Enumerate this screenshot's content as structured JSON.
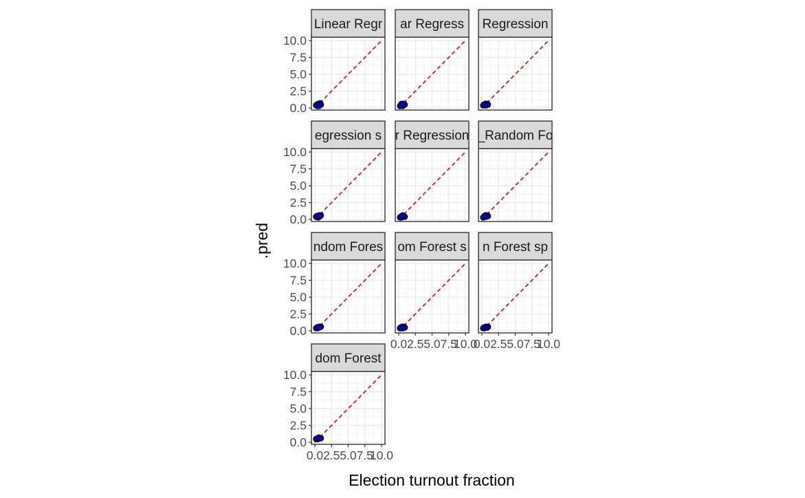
{
  "chart_data": {
    "type": "scatter",
    "xlabel": "Election turnout fraction",
    "ylabel": ".pred",
    "xlim": [
      0,
      10
    ],
    "ylim": [
      0,
      10
    ],
    "x_ticks": [
      "0.0",
      "2.5",
      "5.0",
      "7.5",
      "10.0"
    ],
    "y_ticks": [
      "0.0",
      "2.5",
      "5.0",
      "7.5",
      "10.0"
    ],
    "x_tick_values": [
      0,
      2.5,
      5,
      7.5,
      10
    ],
    "y_tick_values": [
      0,
      2.5,
      5,
      7.5,
      10
    ],
    "grid": true,
    "reference_line": {
      "type": "identity",
      "slope": 1,
      "intercept": 0,
      "color": "#e00000",
      "dash": "dashed"
    },
    "point_color": "#0000cc",
    "point_outline": "#000000",
    "panels": [
      {
        "strip": "Linear Regr",
        "points": [
          [
            0.3,
            0.5
          ],
          [
            0.5,
            0.4
          ],
          [
            0.7,
            0.6
          ],
          [
            0.4,
            0.3
          ],
          [
            0.6,
            0.5
          ],
          [
            0.8,
            0.7
          ],
          [
            0.5,
            0.6
          ],
          [
            0.9,
            0.5
          ],
          [
            0.2,
            0.4
          ],
          [
            0.6,
            0.3
          ]
        ]
      },
      {
        "strip": "ar Regress",
        "points": [
          [
            0.3,
            0.4
          ],
          [
            0.5,
            0.5
          ],
          [
            0.7,
            0.5
          ],
          [
            0.4,
            0.6
          ],
          [
            0.6,
            0.3
          ],
          [
            0.8,
            0.6
          ],
          [
            0.5,
            0.4
          ],
          [
            0.9,
            0.5
          ],
          [
            0.2,
            0.3
          ],
          [
            0.6,
            0.6
          ]
        ]
      },
      {
        "strip": "Regression",
        "points": [
          [
            0.3,
            0.5
          ],
          [
            0.5,
            0.5
          ],
          [
            0.7,
            0.6
          ],
          [
            0.4,
            0.4
          ],
          [
            0.6,
            0.5
          ],
          [
            0.8,
            0.6
          ],
          [
            0.5,
            0.6
          ],
          [
            0.9,
            0.5
          ],
          [
            0.2,
            0.4
          ],
          [
            0.6,
            0.4
          ]
        ]
      },
      {
        "strip": "egression s",
        "points": [
          [
            0.3,
            0.5
          ],
          [
            0.5,
            0.4
          ],
          [
            0.7,
            0.6
          ],
          [
            0.4,
            0.5
          ],
          [
            0.6,
            0.6
          ],
          [
            0.8,
            0.5
          ],
          [
            0.5,
            0.3
          ],
          [
            0.9,
            0.6
          ],
          [
            0.2,
            0.4
          ],
          [
            0.6,
            0.5
          ]
        ]
      },
      {
        "strip": "r Regression",
        "points": [
          [
            0.3,
            0.4
          ],
          [
            0.5,
            0.5
          ],
          [
            0.7,
            0.5
          ],
          [
            0.4,
            0.3
          ],
          [
            0.6,
            0.6
          ],
          [
            0.8,
            0.5
          ],
          [
            0.5,
            0.4
          ],
          [
            0.9,
            0.4
          ],
          [
            0.2,
            0.3
          ],
          [
            0.6,
            0.5
          ]
        ]
      },
      {
        "strip": "_Random Fo",
        "points": [
          [
            0.3,
            0.4
          ],
          [
            0.5,
            0.5
          ],
          [
            0.7,
            0.6
          ],
          [
            0.4,
            0.4
          ],
          [
            0.6,
            0.5
          ],
          [
            0.8,
            0.6
          ],
          [
            0.5,
            0.6
          ],
          [
            0.9,
            0.5
          ],
          [
            0.2,
            0.3
          ],
          [
            0.6,
            0.4
          ]
        ]
      },
      {
        "strip": "ndom Fores",
        "points": [
          [
            0.3,
            0.5
          ],
          [
            0.5,
            0.5
          ],
          [
            0.7,
            0.6
          ],
          [
            0.4,
            0.4
          ],
          [
            0.6,
            0.6
          ],
          [
            0.8,
            0.6
          ],
          [
            0.5,
            0.5
          ],
          [
            0.9,
            0.6
          ],
          [
            0.2,
            0.4
          ],
          [
            0.6,
            0.5
          ]
        ]
      },
      {
        "strip": "om Forest s",
        "points": [
          [
            0.3,
            0.5
          ],
          [
            0.5,
            0.4
          ],
          [
            0.7,
            0.6
          ],
          [
            0.4,
            0.5
          ],
          [
            0.6,
            0.5
          ],
          [
            0.8,
            0.6
          ],
          [
            0.5,
            0.6
          ],
          [
            0.9,
            0.5
          ],
          [
            0.2,
            0.4
          ],
          [
            0.6,
            0.4
          ]
        ]
      },
      {
        "strip": "n Forest sp",
        "points": [
          [
            0.3,
            0.5
          ],
          [
            0.5,
            0.5
          ],
          [
            0.7,
            0.6
          ],
          [
            0.4,
            0.4
          ],
          [
            0.6,
            0.6
          ],
          [
            0.8,
            0.5
          ],
          [
            0.5,
            0.5
          ],
          [
            0.9,
            0.6
          ],
          [
            0.2,
            0.4
          ],
          [
            0.6,
            0.5
          ]
        ]
      },
      {
        "strip": "dom Forest",
        "points": [
          [
            0.3,
            0.5
          ],
          [
            0.5,
            0.6
          ],
          [
            0.7,
            0.6
          ],
          [
            0.4,
            0.5
          ],
          [
            0.6,
            0.7
          ],
          [
            0.8,
            0.6
          ],
          [
            0.5,
            0.5
          ],
          [
            0.9,
            0.6
          ],
          [
            0.2,
            0.5
          ],
          [
            0.6,
            0.6
          ]
        ]
      }
    ]
  }
}
